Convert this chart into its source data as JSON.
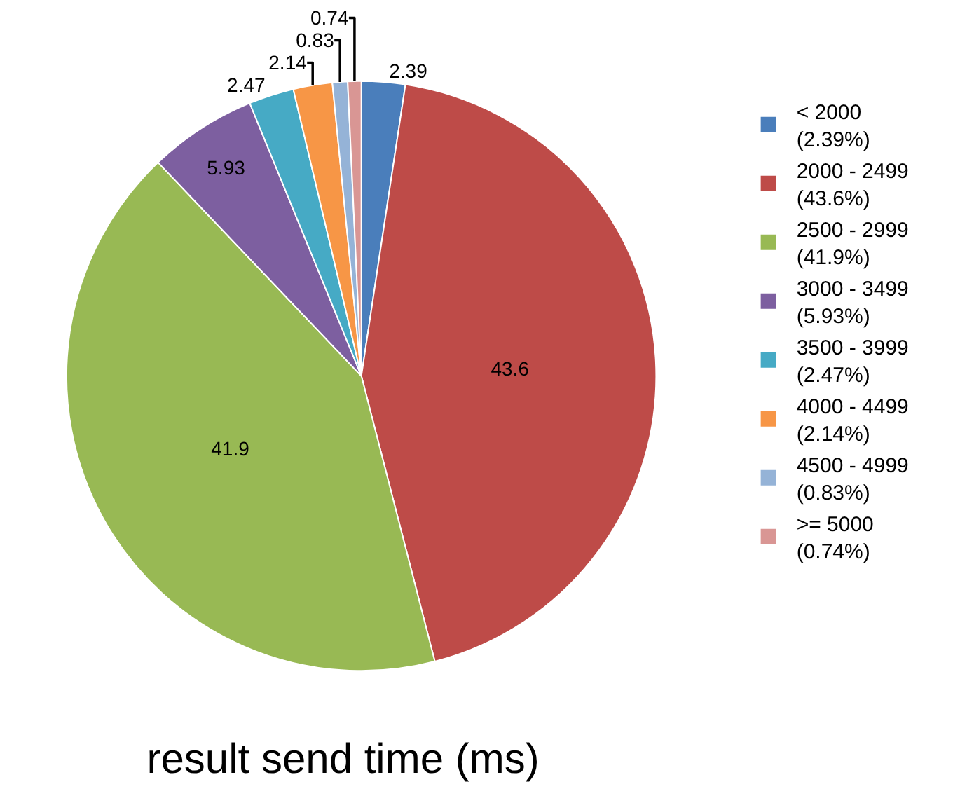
{
  "chart_data": {
    "type": "pie",
    "title": "result send time (ms)",
    "categories": [
      "< 2000\n(2.39%)",
      "2000 - 2499\n(43.6%)",
      "2500 - 2999\n(41.9%)",
      "3000 - 3499\n(5.93%)",
      "3500 - 3999\n(2.47%)",
      "4000 - 4499\n(2.14%)",
      "4500 - 4999\n(0.83%)",
      ">= 5000\n(0.74%)"
    ],
    "values": [
      2.39,
      43.6,
      41.9,
      5.93,
      2.47,
      2.14,
      0.83,
      0.74
    ],
    "colors": [
      "#4a7ebb",
      "#be4b48",
      "#98b954",
      "#7d5fa0",
      "#46aac5",
      "#f79646",
      "#95b3d7",
      "#d99694"
    ],
    "data_labels": true,
    "legend": "right"
  }
}
